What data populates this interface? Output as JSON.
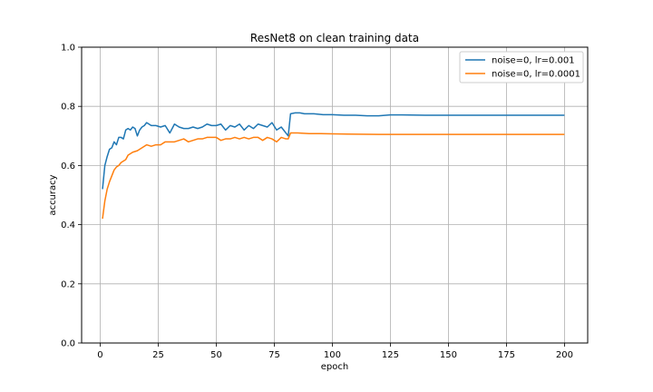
{
  "chart_data": {
    "type": "line",
    "title": "ResNet8 on clean training data",
    "xlabel": "epoch",
    "ylabel": "accuracy",
    "xlim": [
      -8,
      210
    ],
    "ylim": [
      0.0,
      1.0
    ],
    "xticks": [
      0,
      25,
      50,
      75,
      100,
      125,
      150,
      175,
      200
    ],
    "yticks": [
      0.0,
      0.2,
      0.4,
      0.6,
      0.8,
      1.0
    ],
    "ytick_labels": [
      "0.0",
      "0.2",
      "0.4",
      "0.6",
      "0.8",
      "1.0"
    ],
    "grid": true,
    "legend_position": "top-right",
    "series": [
      {
        "name": "noise=0, lr=0.001",
        "color": "#1f77b4",
        "points": [
          [
            1,
            0.52
          ],
          [
            2,
            0.6
          ],
          [
            3,
            0.63
          ],
          [
            4,
            0.655
          ],
          [
            5,
            0.66
          ],
          [
            6,
            0.68
          ],
          [
            7,
            0.67
          ],
          [
            8,
            0.695
          ],
          [
            9,
            0.695
          ],
          [
            10,
            0.69
          ],
          [
            11,
            0.72
          ],
          [
            12,
            0.725
          ],
          [
            13,
            0.72
          ],
          [
            14,
            0.73
          ],
          [
            15,
            0.725
          ],
          [
            16,
            0.7
          ],
          [
            17,
            0.72
          ],
          [
            18,
            0.73
          ],
          [
            19,
            0.735
          ],
          [
            20,
            0.745
          ],
          [
            22,
            0.735
          ],
          [
            24,
            0.735
          ],
          [
            26,
            0.73
          ],
          [
            28,
            0.735
          ],
          [
            30,
            0.71
          ],
          [
            32,
            0.74
          ],
          [
            34,
            0.73
          ],
          [
            36,
            0.725
          ],
          [
            38,
            0.725
          ],
          [
            40,
            0.73
          ],
          [
            42,
            0.725
          ],
          [
            44,
            0.73
          ],
          [
            46,
            0.74
          ],
          [
            48,
            0.735
          ],
          [
            50,
            0.735
          ],
          [
            52,
            0.74
          ],
          [
            54,
            0.72
          ],
          [
            56,
            0.735
          ],
          [
            58,
            0.73
          ],
          [
            60,
            0.74
          ],
          [
            62,
            0.72
          ],
          [
            64,
            0.735
          ],
          [
            66,
            0.725
          ],
          [
            68,
            0.74
          ],
          [
            70,
            0.735
          ],
          [
            72,
            0.73
          ],
          [
            74,
            0.745
          ],
          [
            76,
            0.72
          ],
          [
            78,
            0.73
          ],
          [
            80,
            0.71
          ],
          [
            81,
            0.7
          ],
          [
            82,
            0.775
          ],
          [
            84,
            0.778
          ],
          [
            86,
            0.778
          ],
          [
            88,
            0.775
          ],
          [
            92,
            0.775
          ],
          [
            96,
            0.772
          ],
          [
            100,
            0.772
          ],
          [
            105,
            0.77
          ],
          [
            110,
            0.77
          ],
          [
            115,
            0.768
          ],
          [
            120,
            0.768
          ],
          [
            125,
            0.771
          ],
          [
            130,
            0.771
          ],
          [
            140,
            0.77
          ],
          [
            150,
            0.77
          ],
          [
            160,
            0.77
          ],
          [
            170,
            0.77
          ],
          [
            180,
            0.77
          ],
          [
            190,
            0.77
          ],
          [
            200,
            0.77
          ]
        ]
      },
      {
        "name": "noise=0, lr=0.0001",
        "color": "#ff7f0e",
        "points": [
          [
            1,
            0.42
          ],
          [
            2,
            0.48
          ],
          [
            3,
            0.52
          ],
          [
            4,
            0.545
          ],
          [
            5,
            0.565
          ],
          [
            6,
            0.585
          ],
          [
            7,
            0.595
          ],
          [
            8,
            0.6
          ],
          [
            9,
            0.61
          ],
          [
            10,
            0.615
          ],
          [
            11,
            0.62
          ],
          [
            12,
            0.635
          ],
          [
            13,
            0.64
          ],
          [
            14,
            0.645
          ],
          [
            16,
            0.65
          ],
          [
            18,
            0.66
          ],
          [
            20,
            0.67
          ],
          [
            22,
            0.665
          ],
          [
            24,
            0.67
          ],
          [
            26,
            0.67
          ],
          [
            28,
            0.68
          ],
          [
            30,
            0.68
          ],
          [
            32,
            0.68
          ],
          [
            34,
            0.685
          ],
          [
            36,
            0.69
          ],
          [
            38,
            0.68
          ],
          [
            40,
            0.685
          ],
          [
            42,
            0.69
          ],
          [
            44,
            0.69
          ],
          [
            46,
            0.695
          ],
          [
            48,
            0.695
          ],
          [
            50,
            0.695
          ],
          [
            52,
            0.685
          ],
          [
            54,
            0.69
          ],
          [
            56,
            0.69
          ],
          [
            58,
            0.695
          ],
          [
            60,
            0.69
          ],
          [
            62,
            0.695
          ],
          [
            64,
            0.69
          ],
          [
            66,
            0.695
          ],
          [
            68,
            0.695
          ],
          [
            70,
            0.685
          ],
          [
            72,
            0.695
          ],
          [
            74,
            0.69
          ],
          [
            76,
            0.68
          ],
          [
            78,
            0.695
          ],
          [
            80,
            0.69
          ],
          [
            81,
            0.69
          ],
          [
            82,
            0.71
          ],
          [
            85,
            0.71
          ],
          [
            90,
            0.708
          ],
          [
            95,
            0.708
          ],
          [
            100,
            0.707
          ],
          [
            110,
            0.706
          ],
          [
            120,
            0.705
          ],
          [
            130,
            0.705
          ],
          [
            140,
            0.705
          ],
          [
            150,
            0.705
          ],
          [
            160,
            0.705
          ],
          [
            170,
            0.705
          ],
          [
            180,
            0.705
          ],
          [
            190,
            0.705
          ],
          [
            200,
            0.705
          ]
        ]
      }
    ]
  }
}
